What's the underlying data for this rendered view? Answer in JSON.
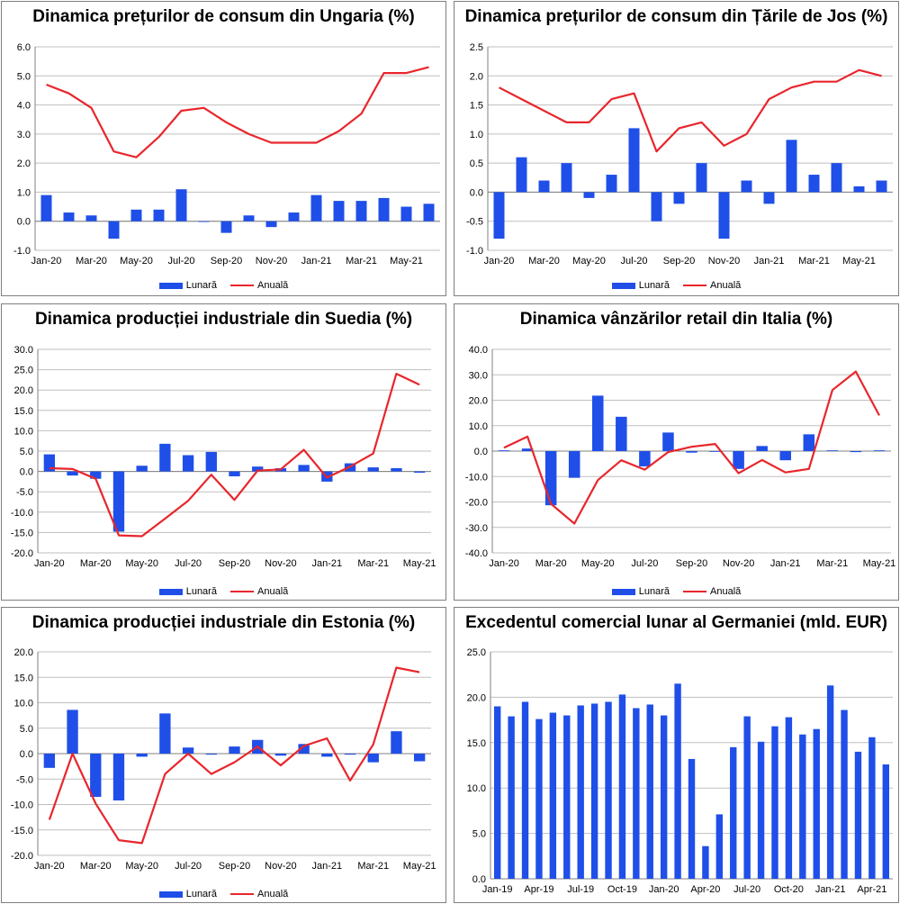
{
  "colors": {
    "bar": "#1f4fe8",
    "line": "#e8262c",
    "grid": "#bfbfbf",
    "axis": "#808080"
  },
  "legend": {
    "bar": "Lunară",
    "line": "Anuală"
  },
  "chart_data": [
    {
      "type": "bar+line",
      "title": "Dinamica prețurilor de consum din Ungaria (%)",
      "categories": [
        "Jan-20",
        "Feb-20",
        "Mar-20",
        "Apr-20",
        "May-20",
        "Jun-20",
        "Jul-20",
        "Aug-20",
        "Sep-20",
        "Oct-20",
        "Nov-20",
        "Dec-20",
        "Jan-21",
        "Feb-21",
        "Mar-21",
        "Apr-21",
        "May-21",
        "Jun-21"
      ],
      "xticks": [
        "Jan-20",
        "Mar-20",
        "May-20",
        "Jul-20",
        "Sep-20",
        "Nov-20",
        "Jan-21",
        "Mar-21",
        "May-21"
      ],
      "ylim": [
        -1,
        6
      ],
      "ystep": 1,
      "ydecimals": 1,
      "series": [
        {
          "name": "Lunară",
          "kind": "bar",
          "values": [
            0.9,
            0.3,
            0.2,
            -0.6,
            0.4,
            0.4,
            1.1,
            0.0,
            -0.4,
            0.2,
            -0.2,
            0.3,
            0.9,
            0.7,
            0.7,
            0.8,
            0.5,
            0.6
          ]
        },
        {
          "name": "Anuală",
          "kind": "line",
          "values": [
            4.7,
            4.4,
            3.9,
            2.4,
            2.2,
            2.9,
            3.8,
            3.9,
            3.4,
            3.0,
            2.7,
            2.7,
            2.7,
            3.1,
            3.7,
            5.1,
            5.1,
            5.3
          ]
        }
      ]
    },
    {
      "type": "bar+line",
      "title": "Dinamica prețurilor de consum din Țările de Jos (%)",
      "categories": [
        "Jan-20",
        "Feb-20",
        "Mar-20",
        "Apr-20",
        "May-20",
        "Jun-20",
        "Jul-20",
        "Aug-20",
        "Sep-20",
        "Oct-20",
        "Nov-20",
        "Dec-20",
        "Jan-21",
        "Feb-21",
        "Mar-21",
        "Apr-21",
        "May-21",
        "Jun-21"
      ],
      "xticks": [
        "Jan-20",
        "Mar-20",
        "May-20",
        "Jul-20",
        "Sep-20",
        "Nov-20",
        "Jan-21",
        "Mar-21",
        "May-21"
      ],
      "ylim": [
        -1,
        2.5
      ],
      "ystep": 0.5,
      "ydecimals": 1,
      "series": [
        {
          "name": "Lunară",
          "kind": "bar",
          "values": [
            -0.8,
            0.6,
            0.2,
            0.5,
            -0.1,
            0.3,
            1.1,
            -0.5,
            -0.2,
            0.5,
            -0.8,
            0.2,
            -0.2,
            0.9,
            0.3,
            0.5,
            0.1,
            0.2
          ]
        },
        {
          "name": "Anuală",
          "kind": "line",
          "values": [
            1.8,
            1.6,
            1.4,
            1.2,
            1.2,
            1.6,
            1.7,
            0.7,
            1.1,
            1.2,
            0.8,
            1.0,
            1.6,
            1.8,
            1.9,
            1.9,
            2.1,
            2.0
          ]
        }
      ]
    },
    {
      "type": "bar+line",
      "title": "Dinamica producției industriale din Suedia (%)",
      "categories": [
        "Jan-20",
        "Feb-20",
        "Mar-20",
        "Apr-20",
        "May-20",
        "Jun-20",
        "Jul-20",
        "Aug-20",
        "Sep-20",
        "Oct-20",
        "Nov-20",
        "Dec-20",
        "Jan-21",
        "Feb-21",
        "Mar-21",
        "Apr-21",
        "May-21"
      ],
      "xticks": [
        "Jan-20",
        "Mar-20",
        "May-20",
        "Jul-20",
        "Sep-20",
        "Nov-20",
        "Jan-21",
        "Mar-21",
        "May-21"
      ],
      "ylim": [
        -20,
        30
      ],
      "ystep": 5,
      "ydecimals": 1,
      "series": [
        {
          "name": "Lunară",
          "kind": "bar",
          "values": [
            4.2,
            -1.0,
            -1.8,
            -14.8,
            1.4,
            6.8,
            4.0,
            4.8,
            -1.2,
            1.2,
            0.8,
            1.6,
            -2.5,
            2.0,
            1.0,
            0.8,
            -0.3
          ]
        },
        {
          "name": "Anuală",
          "kind": "line",
          "values": [
            0.8,
            0.6,
            -1.8,
            -15.7,
            -15.9,
            -11.6,
            -7.2,
            -0.8,
            -7.0,
            0.2,
            0.5,
            5.3,
            -1.5,
            1.2,
            4.4,
            24.0,
            21.3
          ]
        }
      ]
    },
    {
      "type": "bar+line",
      "title": "Dinamica vânzărilor retail din Italia (%)",
      "categories": [
        "Jan-20",
        "Feb-20",
        "Mar-20",
        "Apr-20",
        "May-20",
        "Jun-20",
        "Jul-20",
        "Aug-20",
        "Sep-20",
        "Oct-20",
        "Nov-20",
        "Dec-20",
        "Jan-21",
        "Feb-21",
        "Mar-21",
        "Apr-21",
        "May-21"
      ],
      "xticks": [
        "Jan-20",
        "Mar-20",
        "May-20",
        "Jul-20",
        "Sep-20",
        "Nov-20",
        "Jan-21",
        "Mar-21",
        "May-21"
      ],
      "ylim": [
        -40,
        40
      ],
      "ystep": 10,
      "ydecimals": 1,
      "series": [
        {
          "name": "Lunară",
          "kind": "bar",
          "values": [
            0.3,
            1.0,
            -21.3,
            -10.5,
            21.8,
            13.5,
            -6.0,
            7.3,
            -0.6,
            -0.3,
            -7.0,
            2.0,
            -3.6,
            6.6,
            0.3,
            -0.4,
            0.3
          ]
        },
        {
          "name": "Anuală",
          "kind": "line",
          "values": [
            1.3,
            5.7,
            -20.7,
            -28.5,
            -11.4,
            -3.6,
            -7.3,
            -0.4,
            1.7,
            2.8,
            -8.7,
            -3.5,
            -8.4,
            -7.0,
            24.0,
            31.3,
            14.0
          ]
        }
      ]
    },
    {
      "type": "bar+line",
      "title": "Dinamica producției industriale din Estonia (%)",
      "categories": [
        "Jan-20",
        "Feb-20",
        "Mar-20",
        "Apr-20",
        "May-20",
        "Jun-20",
        "Jul-20",
        "Aug-20",
        "Sep-20",
        "Oct-20",
        "Nov-20",
        "Dec-20",
        "Jan-21",
        "Feb-21",
        "Mar-21",
        "Apr-21",
        "May-21"
      ],
      "xticks": [
        "Jan-20",
        "Mar-20",
        "May-20",
        "Jul-20",
        "Sep-20",
        "Nov-20",
        "Jan-21",
        "Mar-21",
        "May-21"
      ],
      "ylim": [
        -20,
        20
      ],
      "ystep": 5,
      "ydecimals": 1,
      "series": [
        {
          "name": "Lunară",
          "kind": "bar",
          "values": [
            -2.8,
            8.6,
            -8.5,
            -9.2,
            -0.6,
            7.9,
            1.2,
            -0.2,
            1.4,
            2.7,
            -0.4,
            1.9,
            -0.6,
            -0.2,
            -1.7,
            4.4,
            -1.5
          ]
        },
        {
          "name": "Anuală",
          "kind": "line",
          "values": [
            -13.0,
            0.0,
            -9.8,
            -17.0,
            -17.6,
            -4.0,
            0.0,
            -4.0,
            -1.7,
            1.4,
            -2.3,
            1.5,
            3.0,
            -5.3,
            1.8,
            16.9,
            16.0
          ]
        }
      ]
    },
    {
      "type": "bar",
      "title": "Excedentul comercial lunar al Germaniei (mld. EUR)",
      "categories": [
        "Jan-19",
        "Feb-19",
        "Mar-19",
        "Apr-19",
        "May-19",
        "Jun-19",
        "Jul-19",
        "Aug-19",
        "Sep-19",
        "Oct-19",
        "Nov-19",
        "Dec-19",
        "Jan-20",
        "Feb-20",
        "Mar-20",
        "Apr-20",
        "May-20",
        "Jun-20",
        "Jul-20",
        "Aug-20",
        "Sep-20",
        "Oct-20",
        "Nov-20",
        "Dec-20",
        "Jan-21",
        "Feb-21",
        "Mar-21",
        "Apr-21",
        "May-21"
      ],
      "xticks": [
        "Jan-19",
        "Apr-19",
        "Jul-19",
        "Oct-19",
        "Jan-20",
        "Apr-20",
        "Jul-20",
        "Oct-20",
        "Jan-21",
        "Apr-21"
      ],
      "ylim": [
        0,
        25
      ],
      "ystep": 5,
      "ydecimals": 1,
      "series": [
        {
          "name": "Excedent",
          "kind": "bar",
          "values": [
            19.0,
            17.9,
            19.5,
            17.6,
            18.3,
            18.0,
            19.1,
            19.3,
            19.5,
            20.3,
            18.8,
            19.2,
            18.0,
            21.5,
            13.2,
            3.6,
            7.1,
            14.5,
            17.9,
            15.1,
            16.8,
            17.8,
            15.9,
            16.5,
            21.3,
            18.6,
            14.0,
            15.6,
            12.6
          ]
        }
      ]
    }
  ]
}
